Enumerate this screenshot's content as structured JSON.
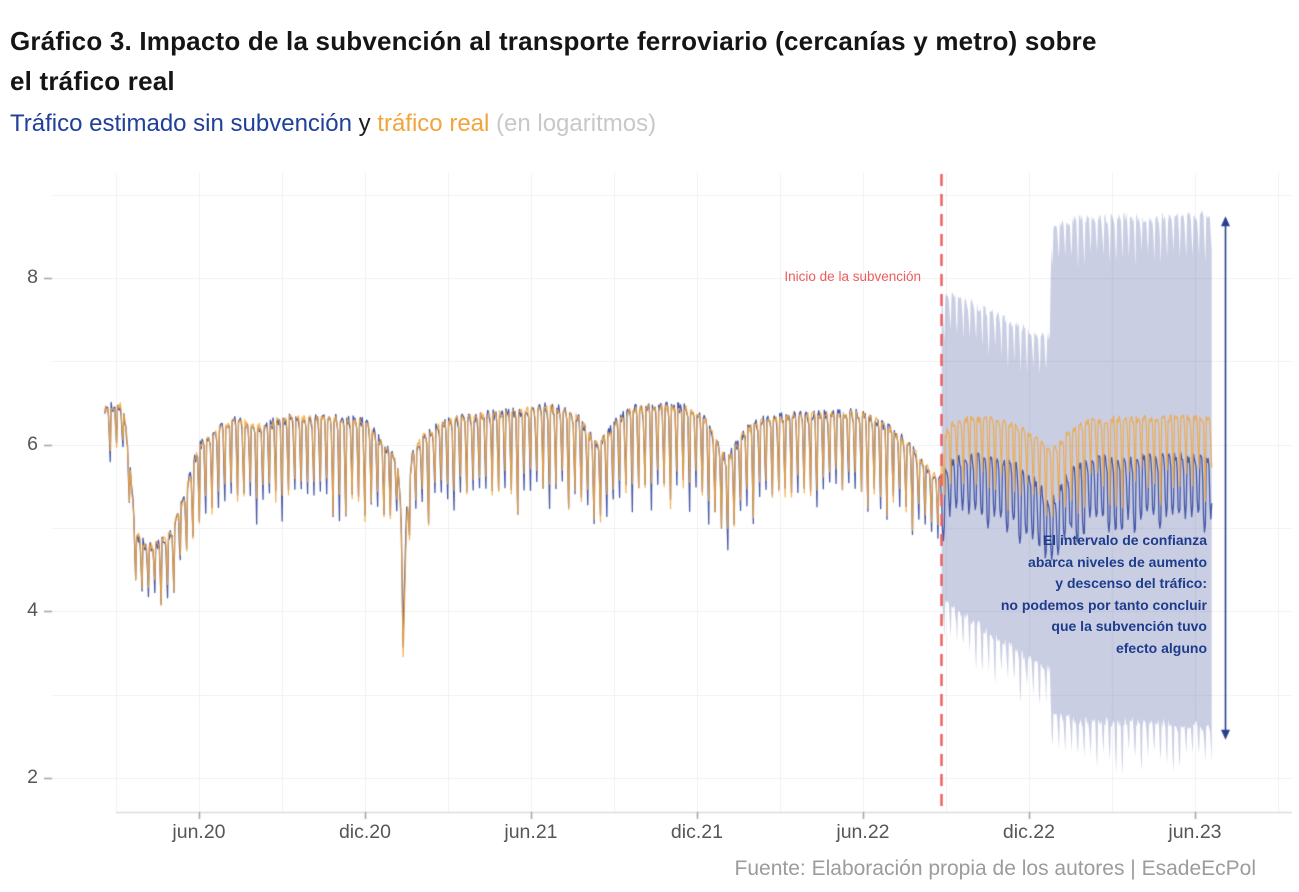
{
  "header": {
    "title_lines": [
      "Gráfico 3. Impacto de la subvención al transporte ferroviario (cercanías y metro) sobre",
      "el tráfico real"
    ]
  },
  "subtitle": {
    "estimated": "Tráfico estimado sin subvención",
    "connector": " y ",
    "real": "tráfico real",
    "units": " (en logaritmos)"
  },
  "footer": {
    "source": "Fuente: Elaboración propia de los autores | EsadeEcPol"
  },
  "colors": {
    "title": "#151515",
    "subtitle_estimated": "#20409a",
    "subtitle_real": "#f2a43c",
    "subtitle_units": "#c8c8c8",
    "axis_text": "#565656",
    "gridline": "#f0f0f0",
    "estimated_line": "#3d50a2",
    "real_line": "#f0a742",
    "confidence_band": "rgba(90,102,168,0.32)",
    "event_red": "#ee5b5b",
    "annotation_navy": "#1e3c8c",
    "footer_gray": "#9c9c9c"
  },
  "chart_data": {
    "type": "line",
    "title": "Tráfico estimado sin subvención y tráfico real (en logaritmos)",
    "xlabel": "",
    "ylabel": "",
    "xlim": [
      2019.974,
      2023.709
    ],
    "ylim": [
      1.592,
      9.26
    ],
    "grid": {
      "on": true,
      "x_start": 2020.1667,
      "x_step": 0.25,
      "y_start": 2,
      "y_step": 1
    },
    "x_axis": {
      "ticks": [
        {
          "label": "jun.20",
          "x": 2020.4167
        },
        {
          "label": "dic.20",
          "x": 2020.9167
        },
        {
          "label": "jun.21",
          "x": 2021.4167
        },
        {
          "label": "dic.21",
          "x": 2021.9167
        },
        {
          "label": "jun.22",
          "x": 2022.4167
        },
        {
          "label": "dic.22",
          "x": 2022.9167
        },
        {
          "label": "jun.23",
          "x": 2023.4167
        }
      ]
    },
    "y_axis": {
      "ticks": [
        2,
        4,
        6,
        8
      ]
    },
    "series_range": [
      2020.133,
      2023.468
    ],
    "event_line": {
      "x": 2022.652,
      "label": "Inicio de la subvención",
      "color": "#ee5b5b"
    },
    "weekly_pattern": {
      "note": "daily data; weekday plateau with weekend dips",
      "dip_profile_narrow": [
        0,
        0,
        0,
        0,
        0.1,
        0.55,
        1
      ],
      "dip_profile_wide": [
        0,
        0,
        0.05,
        0.25,
        0.8,
        1,
        0.9
      ]
    },
    "series": [
      {
        "name": "Tráfico estimado sin subvención",
        "color": "#3d50a2",
        "keyframes_pre_base": [
          [
            2020.133,
            6.42
          ],
          [
            2020.155,
            6.45
          ],
          [
            2020.175,
            6.48
          ],
          [
            2020.19,
            6.42
          ],
          [
            2020.205,
            5.9
          ],
          [
            2020.225,
            4.95
          ],
          [
            2020.26,
            4.75
          ],
          [
            2020.3,
            4.82
          ],
          [
            2020.335,
            4.95
          ],
          [
            2020.37,
            5.35
          ],
          [
            2020.4167,
            5.98
          ],
          [
            2020.45,
            6.1
          ],
          [
            2020.49,
            6.22
          ],
          [
            2020.53,
            6.28
          ],
          [
            2020.57,
            6.24
          ],
          [
            2020.61,
            6.2
          ],
          [
            2020.65,
            6.28
          ],
          [
            2020.7,
            6.32
          ],
          [
            2020.75,
            6.3
          ],
          [
            2020.8,
            6.32
          ],
          [
            2020.85,
            6.3
          ],
          [
            2020.9,
            6.28
          ],
          [
            2020.93,
            6.22
          ],
          [
            2020.96,
            6.05
          ],
          [
            2020.99,
            5.92
          ],
          [
            2021.012,
            5.85
          ],
          [
            2021.025,
            5.3
          ],
          [
            2021.033,
            4.0
          ],
          [
            2021.042,
            5.2
          ],
          [
            2021.06,
            5.9
          ],
          [
            2021.09,
            6.08
          ],
          [
            2021.13,
            6.2
          ],
          [
            2021.17,
            6.28
          ],
          [
            2021.22,
            6.32
          ],
          [
            2021.28,
            6.35
          ],
          [
            2021.35,
            6.38
          ],
          [
            2021.4167,
            6.42
          ],
          [
            2021.47,
            6.44
          ],
          [
            2021.52,
            6.4
          ],
          [
            2021.565,
            6.3
          ],
          [
            2021.61,
            6.0
          ],
          [
            2021.64,
            6.08
          ],
          [
            2021.68,
            6.3
          ],
          [
            2021.72,
            6.42
          ],
          [
            2021.77,
            6.45
          ],
          [
            2021.82,
            6.45
          ],
          [
            2021.87,
            6.44
          ],
          [
            2021.915,
            6.38
          ],
          [
            2021.95,
            6.25
          ],
          [
            2021.985,
            5.95
          ],
          [
            2022.005,
            5.8
          ],
          [
            2022.03,
            5.95
          ],
          [
            2022.06,
            6.15
          ],
          [
            2022.1,
            6.26
          ],
          [
            2022.15,
            6.31
          ],
          [
            2022.22,
            6.34
          ],
          [
            2022.3,
            6.36
          ],
          [
            2022.38,
            6.37
          ],
          [
            2022.4167,
            6.35
          ],
          [
            2022.46,
            6.28
          ],
          [
            2022.5,
            6.18
          ],
          [
            2022.545,
            6.02
          ],
          [
            2022.59,
            5.82
          ],
          [
            2022.625,
            5.65
          ],
          [
            2022.652,
            5.55
          ]
        ],
        "keyframes_post_base": [
          [
            2022.652,
            5.5
          ],
          [
            2022.66,
            5.62
          ],
          [
            2022.675,
            5.78
          ],
          [
            2022.7,
            5.85
          ],
          [
            2022.74,
            5.86
          ],
          [
            2022.78,
            5.85
          ],
          [
            2022.82,
            5.83
          ],
          [
            2022.86,
            5.78
          ],
          [
            2022.9,
            5.68
          ],
          [
            2022.93,
            5.6
          ],
          [
            2022.96,
            5.42
          ],
          [
            2022.985,
            5.3
          ],
          [
            2023.0,
            5.38
          ],
          [
            2023.02,
            5.55
          ],
          [
            2023.05,
            5.72
          ],
          [
            2023.09,
            5.8
          ],
          [
            2023.13,
            5.84
          ],
          [
            2023.18,
            5.85
          ],
          [
            2023.24,
            5.84
          ],
          [
            2023.3,
            5.85
          ],
          [
            2023.36,
            5.85
          ],
          [
            2023.42,
            5.84
          ],
          [
            2023.468,
            5.85
          ]
        ]
      },
      {
        "name": "Tráfico real",
        "color": "#f0a742",
        "keyframes_pre_offset": [
          [
            2020.133,
            0
          ],
          [
            2021.02,
            0
          ],
          [
            2021.033,
            -0.35
          ],
          [
            2021.047,
            0
          ],
          [
            2022.652,
            0
          ]
        ],
        "keyframes_post_base": [
          [
            2022.652,
            5.85
          ],
          [
            2022.66,
            6.05
          ],
          [
            2022.675,
            6.2
          ],
          [
            2022.7,
            6.28
          ],
          [
            2022.74,
            6.31
          ],
          [
            2022.78,
            6.3
          ],
          [
            2022.82,
            6.29
          ],
          [
            2022.86,
            6.25
          ],
          [
            2022.9,
            6.18
          ],
          [
            2022.93,
            6.1
          ],
          [
            2022.96,
            6.0
          ],
          [
            2022.985,
            5.92
          ],
          [
            2023.0,
            5.98
          ],
          [
            2023.02,
            6.08
          ],
          [
            2023.05,
            6.18
          ],
          [
            2023.09,
            6.26
          ],
          [
            2023.13,
            6.29
          ],
          [
            2023.18,
            6.3
          ],
          [
            2023.24,
            6.31
          ],
          [
            2023.3,
            6.31
          ],
          [
            2023.36,
            6.32
          ],
          [
            2023.42,
            6.31
          ],
          [
            2023.468,
            6.32
          ]
        ]
      }
    ],
    "weekly_depth_keyframes": [
      [
        2020.133,
        0.48
      ],
      [
        2020.2,
        0.45
      ],
      [
        2020.25,
        0.5
      ],
      [
        2020.33,
        0.55
      ],
      [
        2020.37,
        0.65
      ],
      [
        2020.4167,
        0.8
      ],
      [
        2020.5,
        0.82
      ],
      [
        2020.6,
        0.8
      ],
      [
        2020.7,
        0.85
      ],
      [
        2020.8,
        0.82
      ],
      [
        2020.9,
        0.85
      ],
      [
        2020.97,
        0.75
      ],
      [
        2021.03,
        0.55
      ],
      [
        2021.08,
        0.72
      ],
      [
        2021.15,
        0.8
      ],
      [
        2021.25,
        0.82
      ],
      [
        2021.4167,
        0.85
      ],
      [
        2021.55,
        0.82
      ],
      [
        2021.61,
        0.85
      ],
      [
        2021.75,
        0.85
      ],
      [
        2021.9,
        0.82
      ],
      [
        2021.99,
        0.8
      ],
      [
        2022.1,
        0.8
      ],
      [
        2022.25,
        0.82
      ],
      [
        2022.4167,
        0.8
      ],
      [
        2022.5,
        0.75
      ],
      [
        2022.6,
        0.65
      ],
      [
        2022.652,
        0.6
      ],
      [
        2022.8,
        0.72
      ],
      [
        2022.95,
        0.75
      ],
      [
        2023.1,
        0.72
      ],
      [
        2023.468,
        0.72
      ]
    ],
    "confidence_band": {
      "color": "rgba(90,102,168,0.32)",
      "x_range": [
        2022.652,
        2023.468
      ],
      "upper_keyframes": [
        [
          2022.652,
          7.72
        ],
        [
          2022.68,
          7.78
        ],
        [
          2022.71,
          7.72
        ],
        [
          2022.75,
          7.64
        ],
        [
          2022.79,
          7.56
        ],
        [
          2022.83,
          7.5
        ],
        [
          2022.87,
          7.42
        ],
        [
          2022.91,
          7.34
        ],
        [
          2022.95,
          7.28
        ],
        [
          2022.98,
          7.26
        ],
        [
          2022.984,
          8.52
        ],
        [
          2023.0,
          8.6
        ],
        [
          2023.03,
          8.64
        ],
        [
          2023.07,
          8.68
        ],
        [
          2023.12,
          8.66
        ],
        [
          2023.17,
          8.68
        ],
        [
          2023.22,
          8.7
        ],
        [
          2023.27,
          8.67
        ],
        [
          2023.32,
          8.7
        ],
        [
          2023.37,
          8.69
        ],
        [
          2023.42,
          8.71
        ],
        [
          2023.468,
          8.73
        ]
      ],
      "lower_keyframes": [
        [
          2022.652,
          4.18
        ],
        [
          2022.68,
          4.1
        ],
        [
          2022.71,
          4.0
        ],
        [
          2022.75,
          3.9
        ],
        [
          2022.79,
          3.78
        ],
        [
          2022.83,
          3.68
        ],
        [
          2022.87,
          3.58
        ],
        [
          2022.91,
          3.46
        ],
        [
          2022.95,
          3.38
        ],
        [
          2022.98,
          3.32
        ],
        [
          2022.984,
          2.82
        ],
        [
          2023.0,
          2.78
        ],
        [
          2023.03,
          2.74
        ],
        [
          2023.07,
          2.7
        ],
        [
          2023.12,
          2.72
        ],
        [
          2023.17,
          2.68
        ],
        [
          2023.22,
          2.7
        ],
        [
          2023.27,
          2.66
        ],
        [
          2023.32,
          2.68
        ],
        [
          2023.37,
          2.64
        ],
        [
          2023.42,
          2.66
        ],
        [
          2023.468,
          2.6
        ]
      ]
    },
    "annotation": {
      "text": "El intervalo de confianza\nabarca niveles de aumento\ny descenso del tráfico:\nno podemos por tanto concluir\nque la subvención tuvo\nefecto alguno",
      "color": "#1e3c8c"
    },
    "arrow": {
      "x": 2023.507,
      "y_top": 8.74,
      "y_bottom": 2.46,
      "color": "#2a3f8f"
    }
  }
}
